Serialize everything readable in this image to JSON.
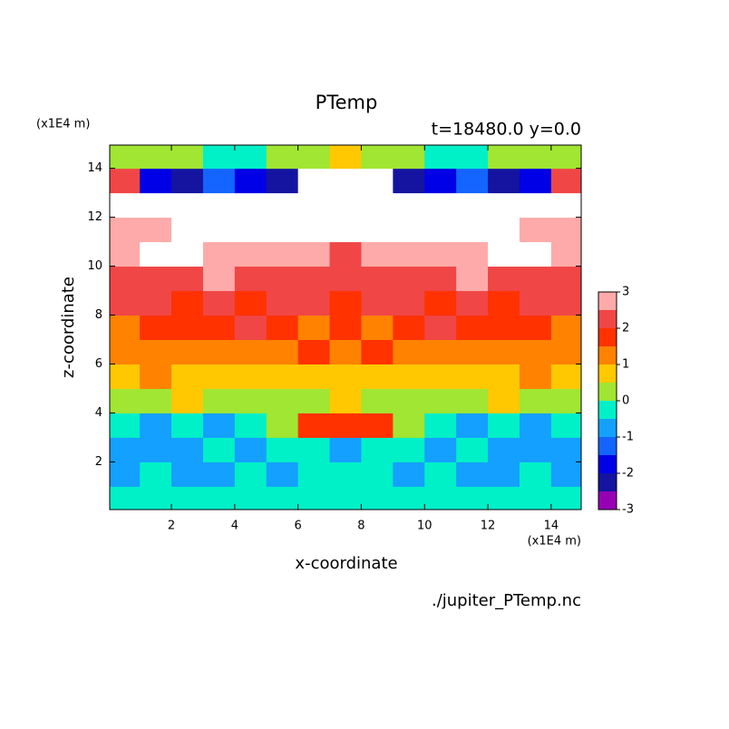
{
  "chart_data": {
    "type": "contour",
    "title": "PTemp",
    "subtitle": "t=18480.0 y=0.0",
    "x_label": "x-coordinate",
    "y_label": "z-coordinate",
    "x_unit": "(x1E4 m)",
    "y_unit": "(x1E4 m)",
    "source": "./jupiter_PTemp.nc",
    "xlim": [
      0.05,
      14.95
    ],
    "ylim": [
      0.05,
      14.95
    ],
    "xticks": [
      2,
      4,
      6,
      8,
      10,
      12,
      14
    ],
    "yticks": [
      2,
      4,
      6,
      8,
      10,
      12,
      14
    ],
    "x": [
      0.5,
      1.5,
      2.5,
      3.5,
      4.5,
      5.5,
      6.5,
      7.5,
      8.5,
      9.5,
      10.5,
      11.5,
      12.5,
      13.5,
      14.5
    ],
    "y": [
      0.5,
      1.5,
      2.5,
      3.5,
      4.5,
      5.5,
      6.5,
      7.5,
      8.5,
      9.5,
      10.5,
      11.5,
      12.5,
      13.5,
      14.5
    ],
    "z": [
      [
        -0.25,
        -0.25,
        -0.25,
        -0.25,
        -0.25,
        -0.25,
        -0.25,
        -0.25,
        -0.25,
        -0.25,
        -0.25,
        -0.25,
        -0.25,
        -0.25,
        -0.25
      ],
      [
        -0.75,
        -0.25,
        -0.75,
        -0.75,
        -0.25,
        -0.75,
        -0.25,
        -0.25,
        -0.25,
        -0.75,
        -0.25,
        -0.75,
        -0.75,
        -0.25,
        -0.75
      ],
      [
        -0.75,
        -0.75,
        -0.75,
        -0.25,
        -0.75,
        -0.25,
        -0.25,
        -0.75,
        -0.25,
        -0.25,
        -0.75,
        -0.25,
        -0.75,
        -0.75,
        -0.75
      ],
      [
        -0.25,
        -0.75,
        -0.25,
        -0.75,
        -0.25,
        0.25,
        1.75,
        1.75,
        1.75,
        0.25,
        -0.25,
        -0.75,
        -0.25,
        -0.75,
        -0.25
      ],
      [
        0.25,
        0.25,
        0.75,
        0.25,
        0.25,
        0.25,
        0.25,
        0.75,
        0.25,
        0.25,
        0.25,
        0.25,
        0.75,
        0.25,
        0.25
      ],
      [
        0.75,
        1.25,
        0.75,
        0.75,
        0.75,
        0.75,
        0.75,
        0.75,
        0.75,
        0.75,
        0.75,
        0.75,
        0.75,
        1.25,
        0.75
      ],
      [
        1.25,
        1.25,
        1.25,
        1.25,
        1.25,
        1.25,
        1.75,
        1.25,
        1.75,
        1.25,
        1.25,
        1.25,
        1.25,
        1.25,
        1.25
      ],
      [
        1.25,
        1.75,
        1.75,
        1.75,
        2.25,
        1.75,
        1.25,
        1.75,
        1.25,
        1.75,
        2.25,
        1.75,
        1.75,
        1.75,
        1.25
      ],
      [
        2.25,
        2.25,
        1.75,
        2.25,
        1.75,
        2.25,
        2.25,
        1.75,
        2.25,
        2.25,
        1.75,
        2.25,
        1.75,
        2.25,
        2.25
      ],
      [
        2.25,
        2.25,
        2.25,
        2.75,
        2.25,
        2.25,
        2.25,
        2.25,
        2.25,
        2.25,
        2.25,
        2.75,
        2.25,
        2.25,
        2.25
      ],
      [
        2.75,
        3.25,
        3.25,
        2.75,
        2.75,
        2.75,
        2.75,
        2.25,
        2.75,
        2.75,
        2.75,
        2.75,
        3.25,
        3.25,
        2.75
      ],
      [
        2.75,
        2.75,
        3.25,
        3.25,
        3.25,
        3.25,
        3.25,
        3.25,
        3.25,
        3.25,
        3.25,
        3.25,
        3.25,
        2.75,
        2.75
      ],
      [
        3.25,
        3.25,
        3.25,
        3.25,
        3.25,
        3.25,
        3.25,
        3.25,
        3.25,
        3.25,
        3.25,
        3.25,
        3.25,
        3.25,
        3.25
      ],
      [
        2.25,
        -1.75,
        -2.25,
        -1.25,
        -1.75,
        -2.25,
        3.25,
        3.25,
        3.25,
        -2.25,
        -1.75,
        -1.25,
        -2.25,
        -1.75,
        2.25
      ],
      [
        0.25,
        0.25,
        0.25,
        -0.25,
        -0.25,
        0.25,
        0.25,
        0.75,
        0.25,
        0.25,
        -0.25,
        -0.25,
        0.25,
        0.25,
        0.25
      ]
    ],
    "levels": [
      -3,
      -2.5,
      -2,
      -1.5,
      -1,
      -0.5,
      0,
      0.5,
      1,
      1.5,
      2,
      2.5,
      3
    ],
    "colors": [
      "#9600b4",
      "#1414a0",
      "#0000e6",
      "#1464ff",
      "#14a0ff",
      "#00f0c8",
      "#a0e632",
      "#ffc800",
      "#ff8200",
      "#ff3200",
      "#f04646",
      "#ffaaaa"
    ],
    "colorbar_ticks": [
      -3,
      -2,
      -1,
      0,
      1,
      2,
      3
    ]
  }
}
